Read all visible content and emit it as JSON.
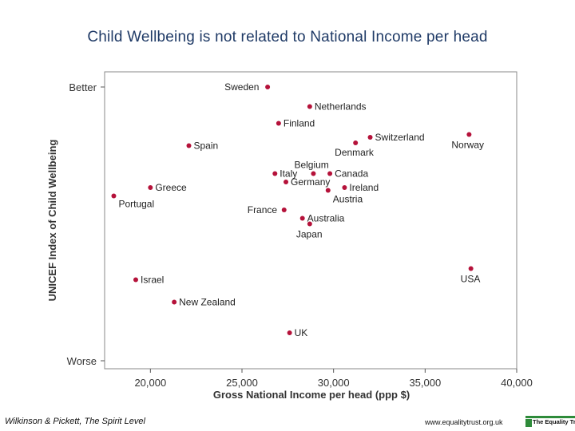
{
  "title": "Child Wellbeing is not related to National Income per head",
  "footer": {
    "citation": "Wilkinson & Pickett, The Spirit Level",
    "url": "www.equalitytrust.org.uk",
    "logo_text": "The Equality Trust"
  },
  "colors": {
    "point": "#b5123a",
    "axis": "#555555",
    "title": "#1f3a66",
    "logo": "#2e8b3a"
  },
  "chart_data": {
    "type": "scatter",
    "title": "Child Wellbeing is not related to National Income per head",
    "xlabel": "Gross National Income per head (ppp $)",
    "ylabel": "UNICEF Index of Child Wellbeing",
    "xlim": [
      17500,
      40000
    ],
    "xticks": [
      20000,
      25000,
      30000,
      35000,
      40000
    ],
    "xtick_labels": [
      "20,000",
      "25,000",
      "30,000",
      "35,000",
      "40,000"
    ],
    "ylim": [
      0,
      100
    ],
    "ytick_labels": [
      {
        "label": "Better",
        "y": 98
      },
      {
        "label": "Worse",
        "y": 0
      }
    ],
    "grid": false,
    "points": [
      {
        "label": "Sweden",
        "x": 26400,
        "y": 98
      },
      {
        "label": "Netherlands",
        "x": 28700,
        "y": 91
      },
      {
        "label": "Finland",
        "x": 27000,
        "y": 85
      },
      {
        "label": "Switzerland",
        "x": 32000,
        "y": 80
      },
      {
        "label": "Norway",
        "x": 37400,
        "y": 81
      },
      {
        "label": "Denmark",
        "x": 31200,
        "y": 78
      },
      {
        "label": "Spain",
        "x": 22100,
        "y": 77
      },
      {
        "label": "Belgium",
        "x": 28900,
        "y": 67
      },
      {
        "label": "Italy",
        "x": 26800,
        "y": 67
      },
      {
        "label": "Canada",
        "x": 29800,
        "y": 67
      },
      {
        "label": "Germany",
        "x": 27400,
        "y": 64
      },
      {
        "label": "Ireland",
        "x": 30600,
        "y": 62
      },
      {
        "label": "Austria",
        "x": 29700,
        "y": 61
      },
      {
        "label": "Greece",
        "x": 20000,
        "y": 62
      },
      {
        "label": "Portugal",
        "x": 18000,
        "y": 59
      },
      {
        "label": "France",
        "x": 27300,
        "y": 54
      },
      {
        "label": "Australia",
        "x": 28300,
        "y": 51
      },
      {
        "label": "Japan",
        "x": 28700,
        "y": 49
      },
      {
        "label": "USA",
        "x": 37500,
        "y": 33
      },
      {
        "label": "Israel",
        "x": 19200,
        "y": 29
      },
      {
        "label": "New Zealand",
        "x": 21300,
        "y": 21
      },
      {
        "label": "UK",
        "x": 27600,
        "y": 10
      }
    ]
  }
}
